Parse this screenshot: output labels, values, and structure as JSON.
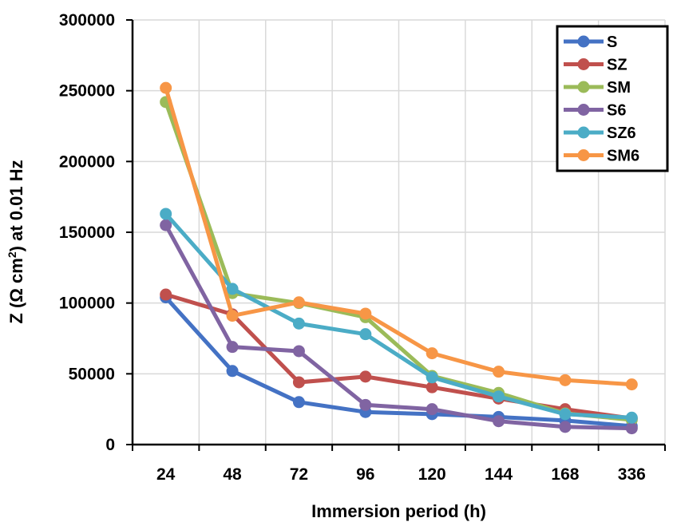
{
  "chart_data": {
    "type": "line",
    "categories": [
      "24",
      "48",
      "72",
      "96",
      "120",
      "144",
      "168",
      "336"
    ],
    "xlabel": "Immersion period (h)",
    "ylabel_parts": [
      "Z (Ω cm",
      "2",
      ") at 0.01 Hz"
    ],
    "ylim": [
      0,
      300000
    ],
    "yticks": [
      "0",
      "50000",
      "100000",
      "150000",
      "200000",
      "250000",
      "300000"
    ],
    "grid": true,
    "legend_position": "top-right",
    "series": [
      {
        "name": "S",
        "color": "#4472C4",
        "values": [
          104000,
          52000,
          30000,
          23000,
          21500,
          19500,
          17000,
          13000
        ]
      },
      {
        "name": "SZ",
        "color": "#C0504D",
        "values": [
          106000,
          92000,
          44000,
          48000,
          40500,
          32500,
          25000,
          18500
        ]
      },
      {
        "name": "SM",
        "color": "#9BBB59",
        "values": [
          242000,
          107000,
          100000,
          90000,
          48500,
          36500,
          22000,
          17500
        ]
      },
      {
        "name": "S6",
        "color": "#8064A2",
        "values": [
          155000,
          69000,
          66000,
          28000,
          25000,
          16500,
          12500,
          11500
        ]
      },
      {
        "name": "SZ6",
        "color": "#4BACC6",
        "values": [
          163000,
          110000,
          85500,
          78000,
          47500,
          34000,
          21500,
          19000
        ]
      },
      {
        "name": "SM6",
        "color": "#F79646",
        "values": [
          252000,
          91000,
          100500,
          92500,
          64500,
          51500,
          45500,
          42500
        ]
      }
    ]
  }
}
